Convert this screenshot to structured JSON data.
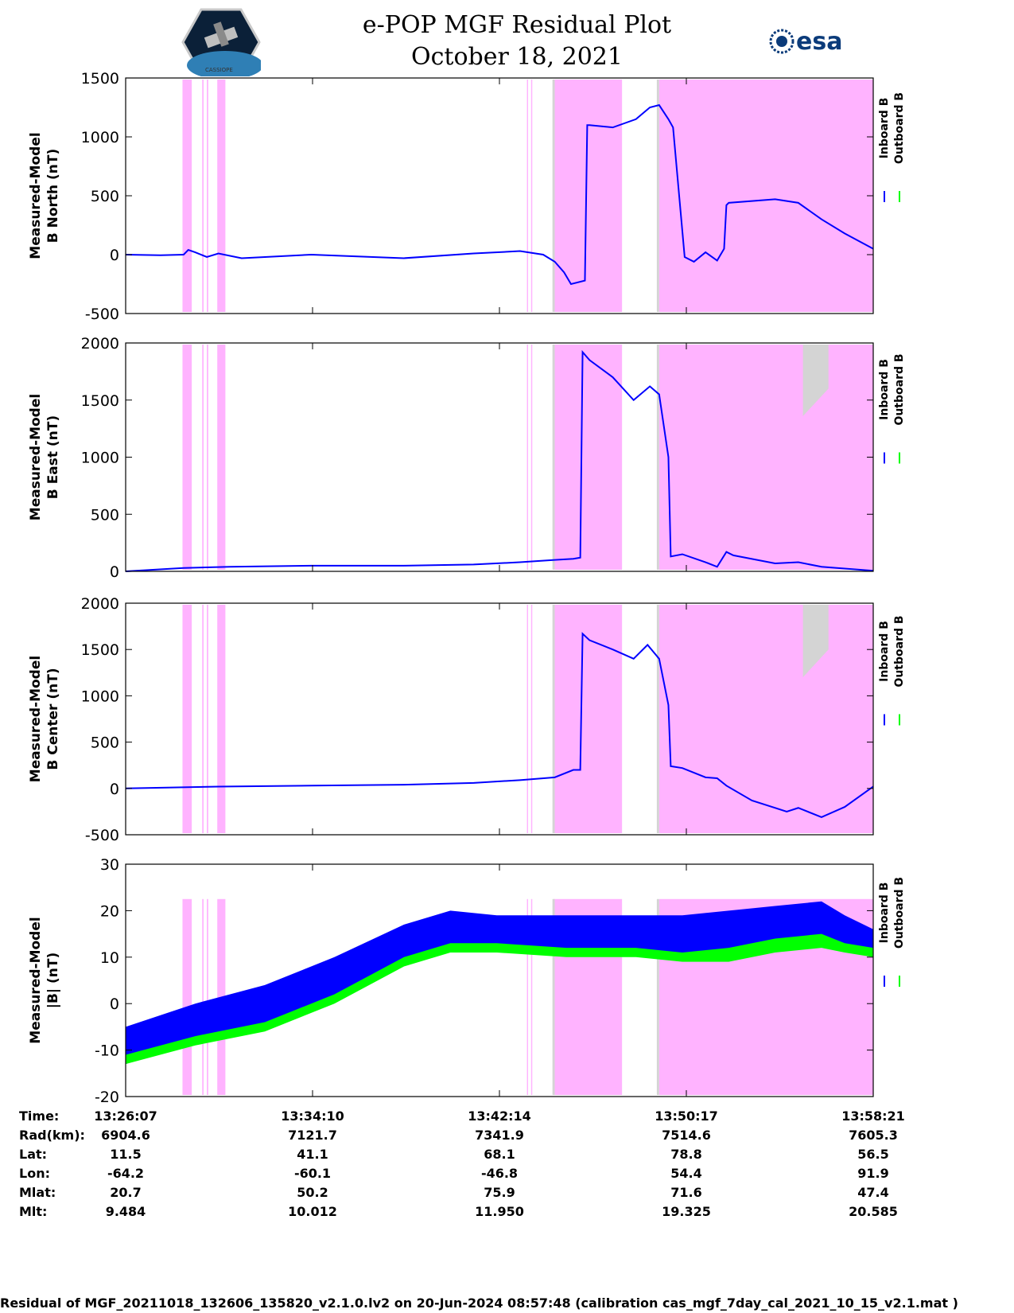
{
  "header": {
    "title_line1": "e-POP MGF Residual Plot",
    "title_line2": "October 18, 2021",
    "logo_left_text": "CASSIOPE",
    "logo_right_text": "esa"
  },
  "footer": {
    "text": "Residual of MGF_20211018_132606_135820_v2.1.0.lv2 on 20-Jun-2024 08:57:48 (calibration cas_mgf_7day_cal_2021_10_15_v2.1.mat )"
  },
  "orbit_table": {
    "labels": [
      "Time:",
      "Rad(km):",
      "Lat:",
      "Lon:",
      "Mlat:",
      "Mlt:"
    ],
    "columns": [
      {
        "time": "13:26:07",
        "rad": "6904.6",
        "lat": "11.5",
        "lon": "-64.2",
        "mlat": "20.7",
        "mlt": "9.484"
      },
      {
        "time": "13:34:10",
        "rad": "7121.7",
        "lat": "41.1",
        "lon": "-60.1",
        "mlat": "50.2",
        "mlt": "10.012"
      },
      {
        "time": "13:42:14",
        "rad": "7341.9",
        "lat": "68.1",
        "lon": "-46.8",
        "mlat": "75.9",
        "mlt": "11.950"
      },
      {
        "time": "13:50:17",
        "rad": "7514.6",
        "lat": "78.8",
        "lon": "54.4",
        "mlat": "71.6",
        "mlt": "19.325"
      },
      {
        "time": "13:58:21",
        "rad": "7605.3",
        "lat": "56.5",
        "lon": "91.9",
        "mlat": "47.4",
        "mlt": "20.585"
      }
    ]
  },
  "chart_data": [
    {
      "type": "line",
      "ylabel": [
        "Measured-Model",
        "B North (nT)"
      ],
      "ylim": [
        -500,
        1500
      ],
      "yticks": [
        -500,
        0,
        500,
        1000,
        1500
      ],
      "xlim": [
        0,
        32.23
      ],
      "x_unit": "minutes after 13:26:07",
      "xticks": [
        "13:26:07",
        "13:34:10",
        "13:42:14",
        "13:50:17",
        "13:58:21"
      ],
      "legend": [
        "Inboard B",
        "Outboard B"
      ],
      "series": [
        {
          "name": "Inboard B",
          "color": "#0000ff",
          "x": [
            0,
            1.5,
            2.5,
            2.7,
            3,
            3.5,
            4,
            5,
            8,
            12,
            15,
            17,
            18,
            18.5,
            18.9,
            19.2,
            19.8,
            19.9,
            20.0,
            21,
            22,
            22.6,
            23,
            23.4,
            23.6,
            24.1,
            24.5,
            25.0,
            25.5,
            25.8,
            25.9,
            26,
            28,
            29,
            30,
            31,
            32.23
          ],
          "values": [
            0,
            -5,
            0,
            40,
            20,
            -20,
            10,
            -30,
            0,
            -30,
            10,
            30,
            0,
            -60,
            -150,
            -250,
            -220,
            1100,
            1100,
            1080,
            1150,
            1250,
            1270,
            1150,
            1080,
            -20,
            -60,
            20,
            -50,
            50,
            420,
            440,
            470,
            440,
            300,
            180,
            50
          ]
        }
      ]
    },
    {
      "type": "line",
      "ylabel": [
        "Measured-Model",
        "B East (nT)"
      ],
      "ylim": [
        0,
        2000
      ],
      "yticks": [
        0,
        500,
        1000,
        1500,
        2000
      ],
      "xlim": [
        0,
        32.23
      ],
      "xticks": [
        "13:26:07",
        "13:34:10",
        "13:42:14",
        "13:50:17",
        "13:58:21"
      ],
      "legend": [
        "Inboard B",
        "Outboard B"
      ],
      "series": [
        {
          "name": "Inboard B",
          "color": "#0000ff",
          "x": [
            0,
            2.5,
            4.5,
            8,
            12,
            15,
            17,
            18.5,
            19.3,
            19.6,
            19.7,
            20,
            21,
            21.9,
            22.6,
            23.0,
            23.4,
            23.5,
            24.0,
            25.0,
            25.5,
            25.9,
            26.2,
            28,
            29,
            30,
            32.23
          ],
          "values": [
            0,
            30,
            40,
            50,
            50,
            60,
            80,
            100,
            110,
            120,
            1920,
            1850,
            1700,
            1500,
            1620,
            1550,
            1000,
            130,
            150,
            80,
            40,
            170,
            140,
            70,
            80,
            40,
            5
          ]
        }
      ]
    },
    {
      "type": "line",
      "ylabel": [
        "Measured-Model",
        "B Center (nT)"
      ],
      "ylim": [
        -500,
        2000
      ],
      "yticks": [
        -500,
        0,
        500,
        1000,
        1500,
        2000
      ],
      "xlim": [
        0,
        32.23
      ],
      "xticks": [
        "13:26:07",
        "13:34:10",
        "13:42:14",
        "13:50:17",
        "13:58:21"
      ],
      "legend": [
        "Inboard B",
        "Outboard B"
      ],
      "series": [
        {
          "name": "Inboard B",
          "color": "#0000ff",
          "x": [
            0,
            2,
            4,
            8,
            12,
            15,
            17,
            18.5,
            19.3,
            19.6,
            19.7,
            20,
            21,
            21.9,
            22.5,
            23.0,
            23.4,
            23.5,
            24.0,
            25.0,
            25.5,
            25.9,
            27,
            28.5,
            29,
            30,
            31,
            32.23
          ],
          "values": [
            0,
            10,
            20,
            30,
            40,
            60,
            90,
            120,
            200,
            200,
            1670,
            1600,
            1500,
            1400,
            1550,
            1400,
            900,
            240,
            220,
            120,
            110,
            30,
            -130,
            -250,
            -210,
            -310,
            -200,
            20
          ]
        }
      ]
    },
    {
      "type": "area",
      "ylabel": [
        "Measured-Model",
        "|B| (nT)"
      ],
      "ylim": [
        -20,
        30
      ],
      "yticks": [
        -20,
        -10,
        0,
        10,
        20,
        30
      ],
      "xlim": [
        0,
        32.23
      ],
      "xticks": [
        "13:26:07",
        "13:34:10",
        "13:42:14",
        "13:50:17",
        "13:58:21"
      ],
      "legend": [
        "Inboard B",
        "Outboard B"
      ],
      "series": [
        {
          "name": "Inboard B",
          "color": "#0000ff",
          "x": [
            0,
            3,
            6,
            9,
            12,
            14,
            16,
            19,
            22,
            24,
            26,
            28,
            30,
            31,
            32.23
          ],
          "upper": [
            -5,
            0,
            4,
            10,
            17,
            20,
            19,
            19,
            19,
            19,
            20,
            21,
            22,
            19,
            16
          ],
          "lower": [
            -13,
            -8,
            -5,
            1,
            9,
            12,
            12,
            11,
            11,
            10,
            10,
            12,
            14,
            12,
            11
          ]
        },
        {
          "name": "Outboard B",
          "color": "#00ff00",
          "x": [
            0,
            3,
            6,
            9,
            12,
            14,
            16,
            19,
            22,
            24,
            26,
            28,
            30,
            31,
            32.23
          ],
          "upper": [
            -11,
            -7,
            -4,
            2,
            10,
            13,
            13,
            12,
            12,
            11,
            12,
            14,
            15,
            13,
            12
          ],
          "lower": [
            -13,
            -9,
            -6,
            0,
            8,
            11,
            11,
            10,
            10,
            9,
            9,
            11,
            12,
            11,
            10
          ]
        }
      ]
    }
  ],
  "shading": {
    "eclipse_color": "#ffb3ff",
    "gap_color": "#d4d4d4",
    "bands_minutes": [
      [
        2.45,
        2.85
      ],
      [
        3.3,
        3.36
      ],
      [
        3.5,
        3.56
      ],
      [
        3.95,
        4.3
      ],
      [
        17.3,
        17.35
      ],
      [
        17.48,
        17.53
      ],
      [
        18.45,
        21.4
      ],
      [
        23.0,
        32.23
      ]
    ],
    "gray_markers_minutes": [
      [
        18.4,
        18.5
      ],
      [
        22.9,
        23.0
      ]
    ],
    "gray_patch_minutes": [
      29.2,
      30.3
    ]
  }
}
